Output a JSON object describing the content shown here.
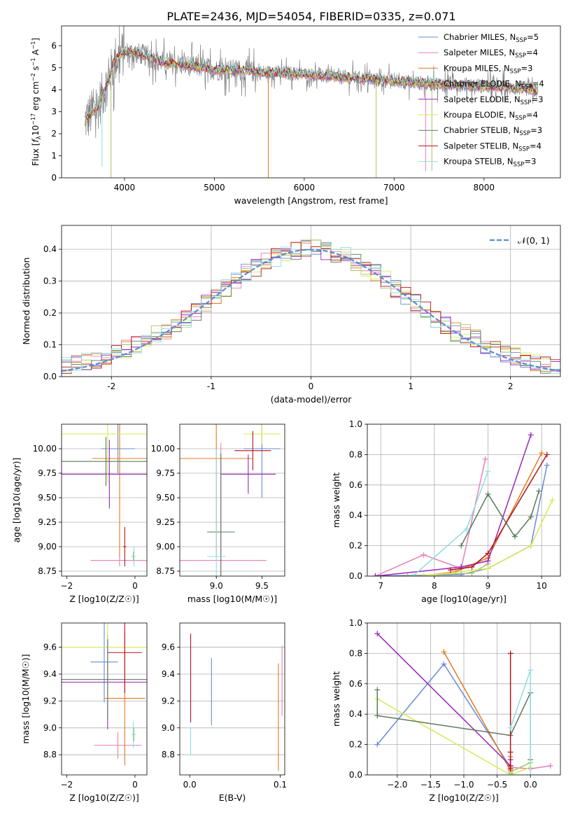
{
  "figure": {
    "title": "PLATE=2436, MJD=54054, FIBERID=0335, z=0.071"
  },
  "colors": {
    "Chabrier MILES": "#6a8ad8",
    "Salpeter MILES": "#e67fb3",
    "Kroupa MILES": "#e07b1f",
    "Chabrier ELODIE": "#a7c46b",
    "Salpeter ELODIE": "#9b25b8",
    "Kroupa ELODIE": "#d6ea58",
    "Chabrier STELIB": "#5c7a5c",
    "Salpeter STELIB": "#b2141a",
    "Kroupa STELIB": "#8fdde0",
    "data": "#808080",
    "normal": "#5b8bd6"
  },
  "chart_data": [
    {
      "id": "spectrum",
      "type": "line",
      "title": "PLATE=2436, MJD=54054, FIBERID=0335, z=0.071",
      "xlabel": "wavelength [Angstrom, rest frame]",
      "ylabel": "Flux [f_λ10^-17 erg cm^-2 s^-1 A^-1]",
      "xlim": [
        3300,
        8850
      ],
      "ylim": [
        0,
        6.9
      ],
      "xticks": [
        4000,
        5000,
        6000,
        7000,
        8000
      ],
      "yticks": [
        0,
        1,
        2,
        3,
        4,
        5,
        6
      ],
      "legend_position": "right",
      "legend": [
        {
          "label": "Chabrier MILES, N",
          "sub": "SSP",
          "eq": "=5",
          "key": "Chabrier MILES"
        },
        {
          "label": "Salpeter MILES, N",
          "sub": "SSP",
          "eq": "=4",
          "key": "Salpeter MILES"
        },
        {
          "label": "Kroupa MILES, N",
          "sub": "SSP",
          "eq": "=3",
          "key": "Kroupa MILES"
        },
        {
          "label": "Chabrier ELODIE, N",
          "sub": "SSP",
          "eq": "=4",
          "key": "Chabrier ELODIE"
        },
        {
          "label": "Salpeter ELODIE, N",
          "sub": "SSP",
          "eq": "=3",
          "key": "Salpeter ELODIE"
        },
        {
          "label": "Kroupa ELODIE, N",
          "sub": "SSP",
          "eq": "=4",
          "key": "Kroupa ELODIE"
        },
        {
          "label": "Chabrier STELIB, N",
          "sub": "SSP",
          "eq": "=3",
          "key": "Chabrier STELIB"
        },
        {
          "label": "Salpeter STELIB, N",
          "sub": "SSP",
          "eq": "=4",
          "key": "Salpeter STELIB"
        },
        {
          "label": "Kroupa STELIB, N",
          "sub": "SSP",
          "eq": "=3",
          "key": "Kroupa STELIB"
        }
      ],
      "continuum": {
        "x": [
          3560,
          3700,
          3800,
          3900,
          4000,
          4100,
          4200,
          4300,
          4400,
          4500,
          4700,
          4900,
          5000,
          5200,
          5500,
          5800,
          6000,
          6300,
          6500,
          6800,
          7000,
          7300,
          7600,
          7900,
          8200,
          8500,
          8600
        ],
        "y": [
          2.6,
          3.2,
          4.2,
          5.4,
          5.7,
          5.7,
          5.6,
          5.4,
          5.3,
          5.2,
          5.1,
          5.0,
          4.9,
          4.9,
          4.8,
          4.75,
          4.7,
          4.6,
          4.55,
          4.45,
          4.4,
          4.3,
          4.25,
          4.2,
          4.1,
          4.05,
          3.9
        ]
      }
    },
    {
      "id": "residuals",
      "type": "histogram",
      "xlabel": "(data-model)/error",
      "ylabel": "Normed distribution",
      "xlim": [
        -2.5,
        2.5
      ],
      "ylim": [
        0,
        0.475
      ],
      "xticks": [
        -2,
        -1,
        0,
        1,
        2
      ],
      "yticks": [
        0.0,
        0.1,
        0.2,
        0.3,
        0.4
      ],
      "grid": true,
      "legend_position": "top-right",
      "legend_label": "𝒩(0, 1)",
      "bin_edges": [
        -2.5,
        2.5
      ],
      "bin_width": 0.1,
      "series_profile": [
        0.035,
        0.04,
        0.05,
        0.06,
        0.065,
        0.07,
        0.08,
        0.09,
        0.1,
        0.11,
        0.125,
        0.14,
        0.155,
        0.17,
        0.185,
        0.2,
        0.215,
        0.23,
        0.245,
        0.26,
        0.28,
        0.3,
        0.31,
        0.32,
        0.33,
        0.34,
        0.345,
        0.35,
        0.355,
        0.36,
        0.37,
        0.38,
        0.39,
        0.4,
        0.38,
        0.36,
        0.35,
        0.34,
        0.32,
        0.3,
        0.28,
        0.26,
        0.24,
        0.22,
        0.2,
        0.18,
        0.16,
        0.14,
        0.12,
        0.1
      ]
    },
    {
      "id": "age-vs-Z",
      "type": "errorbar",
      "xlabel": "Z [log10(Z/Z☉)]",
      "ylabel": "age [log10(age/yr)]",
      "xlim": [
        -2.15,
        0.35
      ],
      "ylim": [
        8.7,
        10.25
      ],
      "xticks": [
        -2,
        0
      ],
      "yticks": [
        8.75,
        9.0,
        9.25,
        9.5,
        9.75,
        10.0
      ],
      "points": [
        {
          "key": "Chabrier MILES",
          "x": -0.5,
          "y": 10.0,
          "xerr": 0.5,
          "yerr": 0.25
        },
        {
          "key": "Salpeter MILES",
          "x": -0.45,
          "y": 8.86,
          "xerr": 0.85,
          "yerr": 0.06
        },
        {
          "key": "Kroupa MILES",
          "x": -0.45,
          "y": 9.9,
          "xerr": 0.8,
          "yerr": 1.0
        },
        {
          "key": "Chabrier ELODIE",
          "x": -0.05,
          "y": 8.9,
          "xerr": 0.05,
          "yerr": 0.05
        },
        {
          "key": "Salpeter ELODIE",
          "x": -0.75,
          "y": 9.74,
          "xerr": 1.6,
          "yerr": 0.35
        },
        {
          "key": "Kroupa ELODIE",
          "x": -0.8,
          "y": 10.15,
          "xerr": 1.6,
          "yerr": 0.5
        },
        {
          "key": "Chabrier STELIB",
          "x": -0.85,
          "y": 9.87,
          "xerr": 1.65,
          "yerr": 0.25
        },
        {
          "key": "Salpeter STELIB",
          "x": -0.3,
          "y": 9.0,
          "xerr": 0.05,
          "yerr": 0.2
        },
        {
          "key": "Kroupa STELIB",
          "x": -0.03,
          "y": 8.9,
          "xerr": 0.05,
          "yerr": 0.1
        }
      ]
    },
    {
      "id": "age-vs-mass",
      "type": "errorbar",
      "xlabel": "mass [log10(M/M☉)]",
      "ylabel": "",
      "xlim": [
        8.6,
        9.75
      ],
      "ylim": [
        8.7,
        10.25
      ],
      "xticks": [
        9.0,
        9.5
      ],
      "yticks": [
        8.75,
        9.0,
        9.25,
        9.5,
        9.75,
        10.0
      ],
      "points": [
        {
          "key": "Chabrier MILES",
          "x": 9.5,
          "y": 10.0,
          "xerr": 0.2,
          "yerr": 0.5
        },
        {
          "key": "Salpeter MILES",
          "x": 9.05,
          "y": 8.86,
          "xerr": 0.5,
          "yerr": 1.2
        },
        {
          "key": "Kroupa MILES",
          "x": 9.0,
          "y": 9.9,
          "xerr": 0.4,
          "yerr": 1.0
        },
        {
          "key": "Chabrier ELODIE",
          "x": 9.5,
          "y": 10.15,
          "xerr": 0.1,
          "yerr": 0.1
        },
        {
          "key": "Salpeter ELODIE",
          "x": 9.35,
          "y": 9.74,
          "xerr": 0.3,
          "yerr": 0.2
        },
        {
          "key": "Kroupa ELODIE",
          "x": 9.5,
          "y": 10.15,
          "xerr": 0.2,
          "yerr": 0.1
        },
        {
          "key": "Chabrier STELIB",
          "x": 9.05,
          "y": 9.15,
          "xerr": 0.15,
          "yerr": 0.8
        },
        {
          "key": "Salpeter STELIB",
          "x": 9.4,
          "y": 9.98,
          "xerr": 0.2,
          "yerr": 0.2
        },
        {
          "key": "Kroupa STELIB",
          "x": 9.0,
          "y": 8.9,
          "xerr": 0.1,
          "yerr": 1.1
        }
      ]
    },
    {
      "id": "weight-vs-age",
      "type": "line",
      "xlabel": "age [log10(age/yr)]",
      "ylabel": "mass weight",
      "xlim": [
        6.75,
        10.35
      ],
      "ylim": [
        0,
        1.0
      ],
      "xticks": [
        7,
        8,
        9,
        10
      ],
      "yticks": [
        0.0,
        0.2,
        0.4,
        0.6,
        0.8,
        1.0
      ],
      "grid": true,
      "series": [
        {
          "key": "Chabrier MILES",
          "x": [
            6.9,
            8.5,
            9.0,
            9.8,
            10.1
          ],
          "y": [
            0.0,
            0.01,
            0.05,
            0.2,
            0.73
          ]
        },
        {
          "key": "Salpeter MILES",
          "x": [
            6.9,
            7.8,
            8.5,
            8.95
          ],
          "y": [
            0.0,
            0.14,
            0.05,
            0.77
          ]
        },
        {
          "key": "Kroupa MILES",
          "x": [
            7.8,
            8.4,
            9.0,
            10.0
          ],
          "y": [
            0.0,
            0.03,
            0.12,
            0.81
          ]
        },
        {
          "key": "Chabrier ELODIE",
          "x": [
            7.5,
            8.7,
            9.0
          ],
          "y": [
            0.0,
            0.02,
            0.08
          ]
        },
        {
          "key": "Salpeter ELODIE",
          "x": [
            6.9,
            8.5,
            9.0,
            9.8
          ],
          "y": [
            0.0,
            0.06,
            0.1,
            0.93
          ]
        },
        {
          "key": "Kroupa ELODIE",
          "x": [
            7.8,
            9.0,
            9.8,
            10.2
          ],
          "y": [
            0.0,
            0.05,
            0.2,
            0.5
          ]
        },
        {
          "key": "Chabrier STELIB",
          "x": [
            8.5,
            9.0,
            9.5,
            9.8,
            9.95
          ],
          "y": [
            0.2,
            0.54,
            0.26,
            0.39,
            0.56
          ]
        },
        {
          "key": "Salpeter STELIB",
          "x": [
            8.3,
            8.7,
            9.0,
            10.1
          ],
          "y": [
            0.04,
            0.06,
            0.15,
            0.8
          ]
        },
        {
          "key": "Kroupa STELIB",
          "x": [
            7.6,
            8.6,
            9.0
          ],
          "y": [
            0.0,
            0.31,
            0.69
          ]
        }
      ]
    },
    {
      "id": "mass-vs-Z",
      "type": "errorbar",
      "xlabel": "Z [log10(Z/Z☉)]",
      "ylabel": "mass [log10(M/M☉)]",
      "xlim": [
        -2.15,
        0.35
      ],
      "ylim": [
        8.65,
        9.78
      ],
      "xticks": [
        -2,
        0
      ],
      "yticks": [
        8.8,
        9.0,
        9.2,
        9.4,
        9.6
      ],
      "points": [
        {
          "key": "Chabrier MILES",
          "x": -0.9,
          "y": 9.49,
          "xerr": 0.4,
          "yerr": 0.3
        },
        {
          "key": "Salpeter MILES",
          "x": -0.5,
          "y": 8.87,
          "xerr": 0.7,
          "yerr": 0.1
        },
        {
          "key": "Kroupa MILES",
          "x": -0.3,
          "y": 9.22,
          "xerr": 0.6,
          "yerr": 0.5
        },
        {
          "key": "Chabrier ELODIE",
          "x": -0.03,
          "y": 8.95,
          "xerr": 0.05,
          "yerr": 0.05
        },
        {
          "key": "Salpeter ELODIE",
          "x": -0.8,
          "y": 9.34,
          "xerr": 1.5,
          "yerr": 0.35
        },
        {
          "key": "Kroupa ELODIE",
          "x": -0.8,
          "y": 9.6,
          "xerr": 1.7,
          "yerr": 0.4
        },
        {
          "key": "Chabrier STELIB",
          "x": -0.8,
          "y": 9.36,
          "xerr": 1.65,
          "yerr": 0.3
        },
        {
          "key": "Salpeter STELIB",
          "x": -0.3,
          "y": 9.56,
          "xerr": 0.5,
          "yerr": 0.3
        },
        {
          "key": "Kroupa STELIB",
          "x": -0.05,
          "y": 8.95,
          "xerr": 0.05,
          "yerr": 0.1
        }
      ]
    },
    {
      "id": "mass-vs-EBV",
      "type": "errorbar",
      "xlabel": "E(B-V)",
      "ylabel": "",
      "xlim": [
        -0.011,
        0.105
      ],
      "ylim": [
        8.65,
        9.78
      ],
      "xticks": [
        0.0,
        0.1
      ],
      "yticks": [
        8.8,
        9.0,
        9.2,
        9.4,
        9.6
      ],
      "points": [
        {
          "key": "Chabrier MILES",
          "x": 0.024,
          "y": 9.27,
          "xerr": 0.0,
          "yerr": 0.25
        },
        {
          "key": "Salpeter MILES",
          "x": 0.102,
          "y": 9.35,
          "xerr": 0.0,
          "yerr": 0.26
        },
        {
          "key": "Kroupa MILES",
          "x": 0.098,
          "y": 9.08,
          "xerr": 0.0,
          "yerr": 0.4
        },
        {
          "key": "Salpeter STELIB",
          "x": 0.001,
          "y": 9.37,
          "xerr": 0.0,
          "yerr": 0.33
        },
        {
          "key": "Kroupa STELIB",
          "x": 0.001,
          "y": 8.9,
          "xerr": 0.0,
          "yerr": 0.1
        }
      ]
    },
    {
      "id": "weight-vs-Z",
      "type": "line",
      "xlabel": "Z [log10(Z/Z☉)]",
      "ylabel": "mass weight",
      "xlim": [
        -2.45,
        0.45
      ],
      "ylim": [
        0,
        1.0
      ],
      "xticks": [
        -2.0,
        -1.5,
        -1.0,
        -0.5,
        0.0
      ],
      "yticks": [
        0.0,
        0.2,
        0.4,
        0.6,
        0.8,
        1.0
      ],
      "grid": true,
      "series": [
        {
          "key": "Chabrier MILES",
          "x": [
            -2.3,
            -1.3,
            -0.3,
            -0.3
          ],
          "y": [
            0.2,
            0.73,
            0.05,
            0.01
          ]
        },
        {
          "key": "Salpeter MILES",
          "x": [
            -0.3,
            0.0,
            0.3
          ],
          "y": [
            0.05,
            0.04,
            0.06
          ]
        },
        {
          "key": "Kroupa MILES",
          "x": [
            -1.3,
            -0.3,
            -0.3
          ],
          "y": [
            0.81,
            0.03,
            0.12
          ]
        },
        {
          "key": "Chabrier ELODIE",
          "x": [
            -0.3,
            0.0
          ],
          "y": [
            0.02,
            0.08
          ]
        },
        {
          "key": "Salpeter ELODIE",
          "x": [
            -2.3,
            -0.3,
            -0.3
          ],
          "y": [
            0.93,
            0.06,
            0.1
          ]
        },
        {
          "key": "Kroupa ELODIE",
          "x": [
            -2.3,
            -0.3,
            0.0
          ],
          "y": [
            0.5,
            0.0,
            0.05
          ]
        },
        {
          "key": "Chabrier STELIB",
          "x": [
            -2.3,
            -2.3,
            -0.3,
            0.0,
            0.0
          ],
          "y": [
            0.56,
            0.39,
            0.26,
            0.54,
            0.1
          ]
        },
        {
          "key": "Salpeter STELIB",
          "x": [
            -0.3,
            -0.3,
            -0.3,
            -0.3
          ],
          "y": [
            0.8,
            0.04,
            0.06,
            0.15
          ]
        },
        {
          "key": "Kroupa STELIB",
          "x": [
            -0.3,
            0.0,
            0.0
          ],
          "y": [
            0.31,
            0.69,
            0.0
          ]
        }
      ]
    }
  ]
}
